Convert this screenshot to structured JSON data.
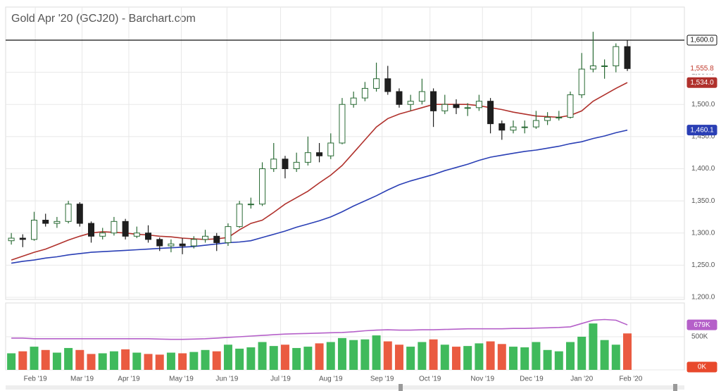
{
  "chart_data": [
    {
      "type": "candlestick",
      "title": "Gold Apr '20 (GCJ20) - Barchart.com",
      "x": [
        0,
        1,
        2,
        3,
        4,
        5,
        6,
        7,
        8,
        9,
        10,
        11,
        12,
        13,
        14,
        15,
        16,
        17,
        18,
        19,
        20,
        21,
        22,
        23,
        24,
        25,
        26,
        27,
        28,
        29,
        30,
        31,
        32,
        33,
        34,
        35,
        36,
        37,
        38,
        39,
        40,
        41,
        42,
        43,
        44,
        45,
        46,
        47,
        48,
        49,
        50,
        51,
        52,
        53,
        54
      ],
      "open": [
        1288,
        1292,
        1290,
        1320,
        1315,
        1318,
        1345,
        1315,
        1295,
        1300,
        1318,
        1295,
        1300,
        1290,
        1280,
        1283,
        1280,
        1290,
        1295,
        1285,
        1310,
        1345,
        1345,
        1400,
        1415,
        1400,
        1410,
        1425,
        1420,
        1440,
        1500,
        1510,
        1525,
        1540,
        1520,
        1500,
        1505,
        1520,
        1490,
        1500,
        1495,
        1495,
        1505,
        1470,
        1460,
        1465,
        1465,
        1475,
        1480,
        1480,
        1515,
        1555,
        1560,
        1560,
        1590
      ],
      "high": [
        1300,
        1298,
        1333,
        1330,
        1325,
        1350,
        1348,
        1318,
        1308,
        1325,
        1322,
        1310,
        1312,
        1293,
        1290,
        1292,
        1295,
        1305,
        1300,
        1315,
        1350,
        1355,
        1410,
        1440,
        1420,
        1425,
        1450,
        1440,
        1455,
        1510,
        1520,
        1535,
        1565,
        1560,
        1525,
        1515,
        1540,
        1525,
        1515,
        1508,
        1502,
        1515,
        1510,
        1475,
        1475,
        1475,
        1490,
        1488,
        1490,
        1520,
        1580,
        1613,
        1570,
        1595,
        1600
      ],
      "low": [
        1282,
        1278,
        1288,
        1310,
        1308,
        1315,
        1310,
        1285,
        1290,
        1296,
        1290,
        1292,
        1285,
        1272,
        1270,
        1267,
        1276,
        1285,
        1272,
        1280,
        1308,
        1338,
        1342,
        1395,
        1385,
        1395,
        1405,
        1410,
        1415,
        1438,
        1495,
        1505,
        1520,
        1515,
        1495,
        1490,
        1500,
        1465,
        1485,
        1485,
        1482,
        1490,
        1455,
        1445,
        1455,
        1455,
        1462,
        1468,
        1475,
        1478,
        1510,
        1550,
        1540,
        1550,
        1552
      ],
      "close": [
        1292,
        1290,
        1320,
        1315,
        1318,
        1345,
        1315,
        1295,
        1300,
        1318,
        1295,
        1300,
        1290,
        1280,
        1283,
        1280,
        1290,
        1295,
        1285,
        1310,
        1345,
        1345,
        1400,
        1415,
        1400,
        1410,
        1425,
        1420,
        1440,
        1500,
        1510,
        1525,
        1540,
        1520,
        1500,
        1505,
        1520,
        1490,
        1500,
        1495,
        1495,
        1505,
        1470,
        1460,
        1465,
        1465,
        1475,
        1480,
        1480,
        1515,
        1555,
        1560,
        1560,
        1590,
        1555.8
      ],
      "close_label": "1,555.8",
      "up_color": "#2a6b35",
      "down_color": "#1e1e1e",
      "series": [
        {
          "color": "#b0312c",
          "last_label": "1,534.0",
          "values": [
            1258,
            1264,
            1270,
            1275,
            1282,
            1289,
            1295,
            1300,
            1302,
            1301,
            1300,
            1298,
            1297,
            1295,
            1294,
            1292,
            1291,
            1290,
            1291,
            1293,
            1305,
            1315,
            1320,
            1332,
            1345,
            1355,
            1365,
            1378,
            1390,
            1405,
            1425,
            1445,
            1465,
            1478,
            1485,
            1490,
            1495,
            1500,
            1500,
            1500,
            1500,
            1498,
            1495,
            1492,
            1488,
            1485,
            1482,
            1481,
            1480,
            1483,
            1490,
            1505,
            1515,
            1525,
            1534
          ]
        },
        {
          "color": "#2a3fb5",
          "last_label": "1,460.1",
          "values": [
            1253,
            1256,
            1258,
            1261,
            1263,
            1266,
            1268,
            1270,
            1271,
            1272,
            1273,
            1274,
            1275,
            1276,
            1277,
            1278,
            1279,
            1281,
            1283,
            1285,
            1286,
            1288,
            1293,
            1298,
            1303,
            1309,
            1314,
            1319,
            1325,
            1333,
            1342,
            1350,
            1358,
            1367,
            1375,
            1381,
            1386,
            1391,
            1397,
            1402,
            1407,
            1413,
            1418,
            1421,
            1424,
            1427,
            1429,
            1432,
            1435,
            1439,
            1442,
            1447,
            1451,
            1456,
            1460.1
          ]
        }
      ],
      "reference_line": {
        "value": 1600,
        "label": "1,600.0"
      },
      "xlim": [
        -0.5,
        59
      ],
      "xticks": [
        {
          "value": 2.1,
          "label": "Feb '19"
        },
        {
          "value": 6.2,
          "label": "Mar '19"
        },
        {
          "value": 10.3,
          "label": "Apr '19"
        },
        {
          "value": 14.9,
          "label": "May '19"
        },
        {
          "value": 18.9,
          "label": "Jun '19"
        },
        {
          "value": 23.6,
          "label": "Jul '19"
        },
        {
          "value": 28.0,
          "label": "Aug '19"
        },
        {
          "value": 32.5,
          "label": "Sep '19"
        },
        {
          "value": 36.7,
          "label": "Oct '19"
        },
        {
          "value": 41.3,
          "label": "Nov '19"
        },
        {
          "value": 45.6,
          "label": "Dec '19"
        },
        {
          "value": 50.0,
          "label": "Jan '20"
        },
        {
          "value": 54.3,
          "label": "Feb '20"
        }
      ],
      "ylim": [
        1196.7,
        1651.5
      ],
      "yticks": [
        {
          "value": 1200,
          "label": "1,200.0"
        },
        {
          "value": 1250,
          "label": "1,250.0"
        },
        {
          "value": 1300,
          "label": "1,300.0"
        },
        {
          "value": 1350,
          "label": "1,350.0"
        },
        {
          "value": 1400,
          "label": "1,400.0"
        },
        {
          "value": 1450,
          "label": "1,450.0"
        },
        {
          "value": 1500,
          "label": "1,500.0"
        },
        {
          "value": 1550,
          "label": "1,550.0"
        }
      ],
      "grid": true
    },
    {
      "type": "bar",
      "values": [
        250000,
        280000,
        350000,
        300000,
        260000,
        330000,
        300000,
        240000,
        250000,
        280000,
        310000,
        260000,
        240000,
        230000,
        260000,
        250000,
        270000,
        300000,
        280000,
        380000,
        320000,
        340000,
        420000,
        360000,
        380000,
        330000,
        350000,
        400000,
        420000,
        480000,
        450000,
        460000,
        520000,
        430000,
        380000,
        350000,
        420000,
        460000,
        380000,
        350000,
        360000,
        400000,
        430000,
        390000,
        350000,
        340000,
        420000,
        300000,
        280000,
        420000,
        500000,
        700000,
        450000,
        380000,
        550000
      ],
      "up_color": "#2bb34a",
      "down_color": "#e8492c",
      "series": [
        {
          "color": "#b560c9",
          "last_label": "679K",
          "values": [
            480000,
            480000,
            470000,
            470000,
            470000,
            470000,
            470000,
            470000,
            470000,
            470000,
            470000,
            470000,
            470000,
            465000,
            460000,
            460000,
            465000,
            470000,
            480000,
            490000,
            500000,
            510000,
            520000,
            530000,
            540000,
            545000,
            550000,
            555000,
            560000,
            565000,
            575000,
            590000,
            600000,
            605000,
            600000,
            600000,
            605000,
            605000,
            610000,
            615000,
            620000,
            620000,
            620000,
            620000,
            625000,
            625000,
            630000,
            635000,
            640000,
            650000,
            700000,
            750000,
            760000,
            750000,
            679000
          ]
        }
      ],
      "ylim": [
        0,
        1010000
      ],
      "yticks": [
        {
          "value": 0,
          "label": "0K"
        },
        {
          "value": 500000,
          "label": "500K"
        }
      ],
      "grid": true
    }
  ]
}
